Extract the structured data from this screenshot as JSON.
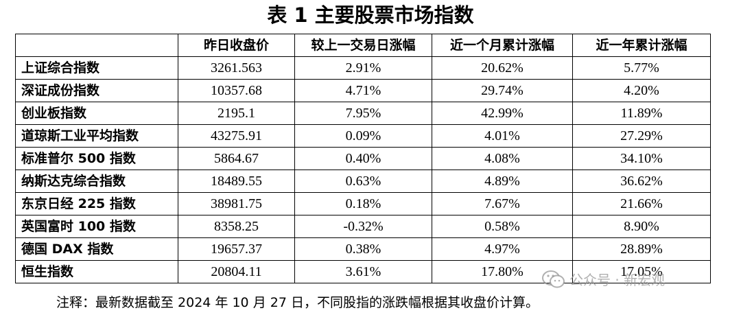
{
  "title": "表 1 主要股票市场指数",
  "table": {
    "headers": [
      "",
      "昨日收盘价",
      "较上一交易日涨幅",
      "近一个月累计涨幅",
      "近一年累计涨幅"
    ],
    "rows": [
      [
        "上证综合指数",
        "3261.563",
        "2.91%",
        "20.62%",
        "5.77%"
      ],
      [
        "深证成份指数",
        "10357.68",
        "4.71%",
        "29.74%",
        "4.20%"
      ],
      [
        "创业板指数",
        "2195.1",
        "7.95%",
        "42.99%",
        "11.89%"
      ],
      [
        "道琼斯工业平均指数",
        "43275.91",
        "0.09%",
        "4.01%",
        "27.29%"
      ],
      [
        "标准普尔 500 指数",
        "5864.67",
        "0.40%",
        "4.08%",
        "34.10%"
      ],
      [
        "纳斯达克综合指数",
        "18489.55",
        "0.63%",
        "4.89%",
        "36.62%"
      ],
      [
        "东京日经 225 指数",
        "38981.75",
        "0.18%",
        "7.67%",
        "21.66%"
      ],
      [
        "英国富时 100 指数",
        "8358.25",
        "-0.32%",
        "0.58%",
        "8.90%"
      ],
      [
        "德国 DAX 指数",
        "19657.37",
        "0.38%",
        "4.97%",
        "28.89%"
      ],
      [
        "恒生指数",
        "20804.11",
        "3.61%",
        "17.80%",
        "17.05%"
      ]
    ]
  },
  "note": "注释：最新数据截至 2024 年 10 月 27 日，不同股指的涨跌幅根据其收盘价计算。",
  "watermark": {
    "text": "公众号 · 新宏观",
    "icon": "wechat-icon"
  }
}
